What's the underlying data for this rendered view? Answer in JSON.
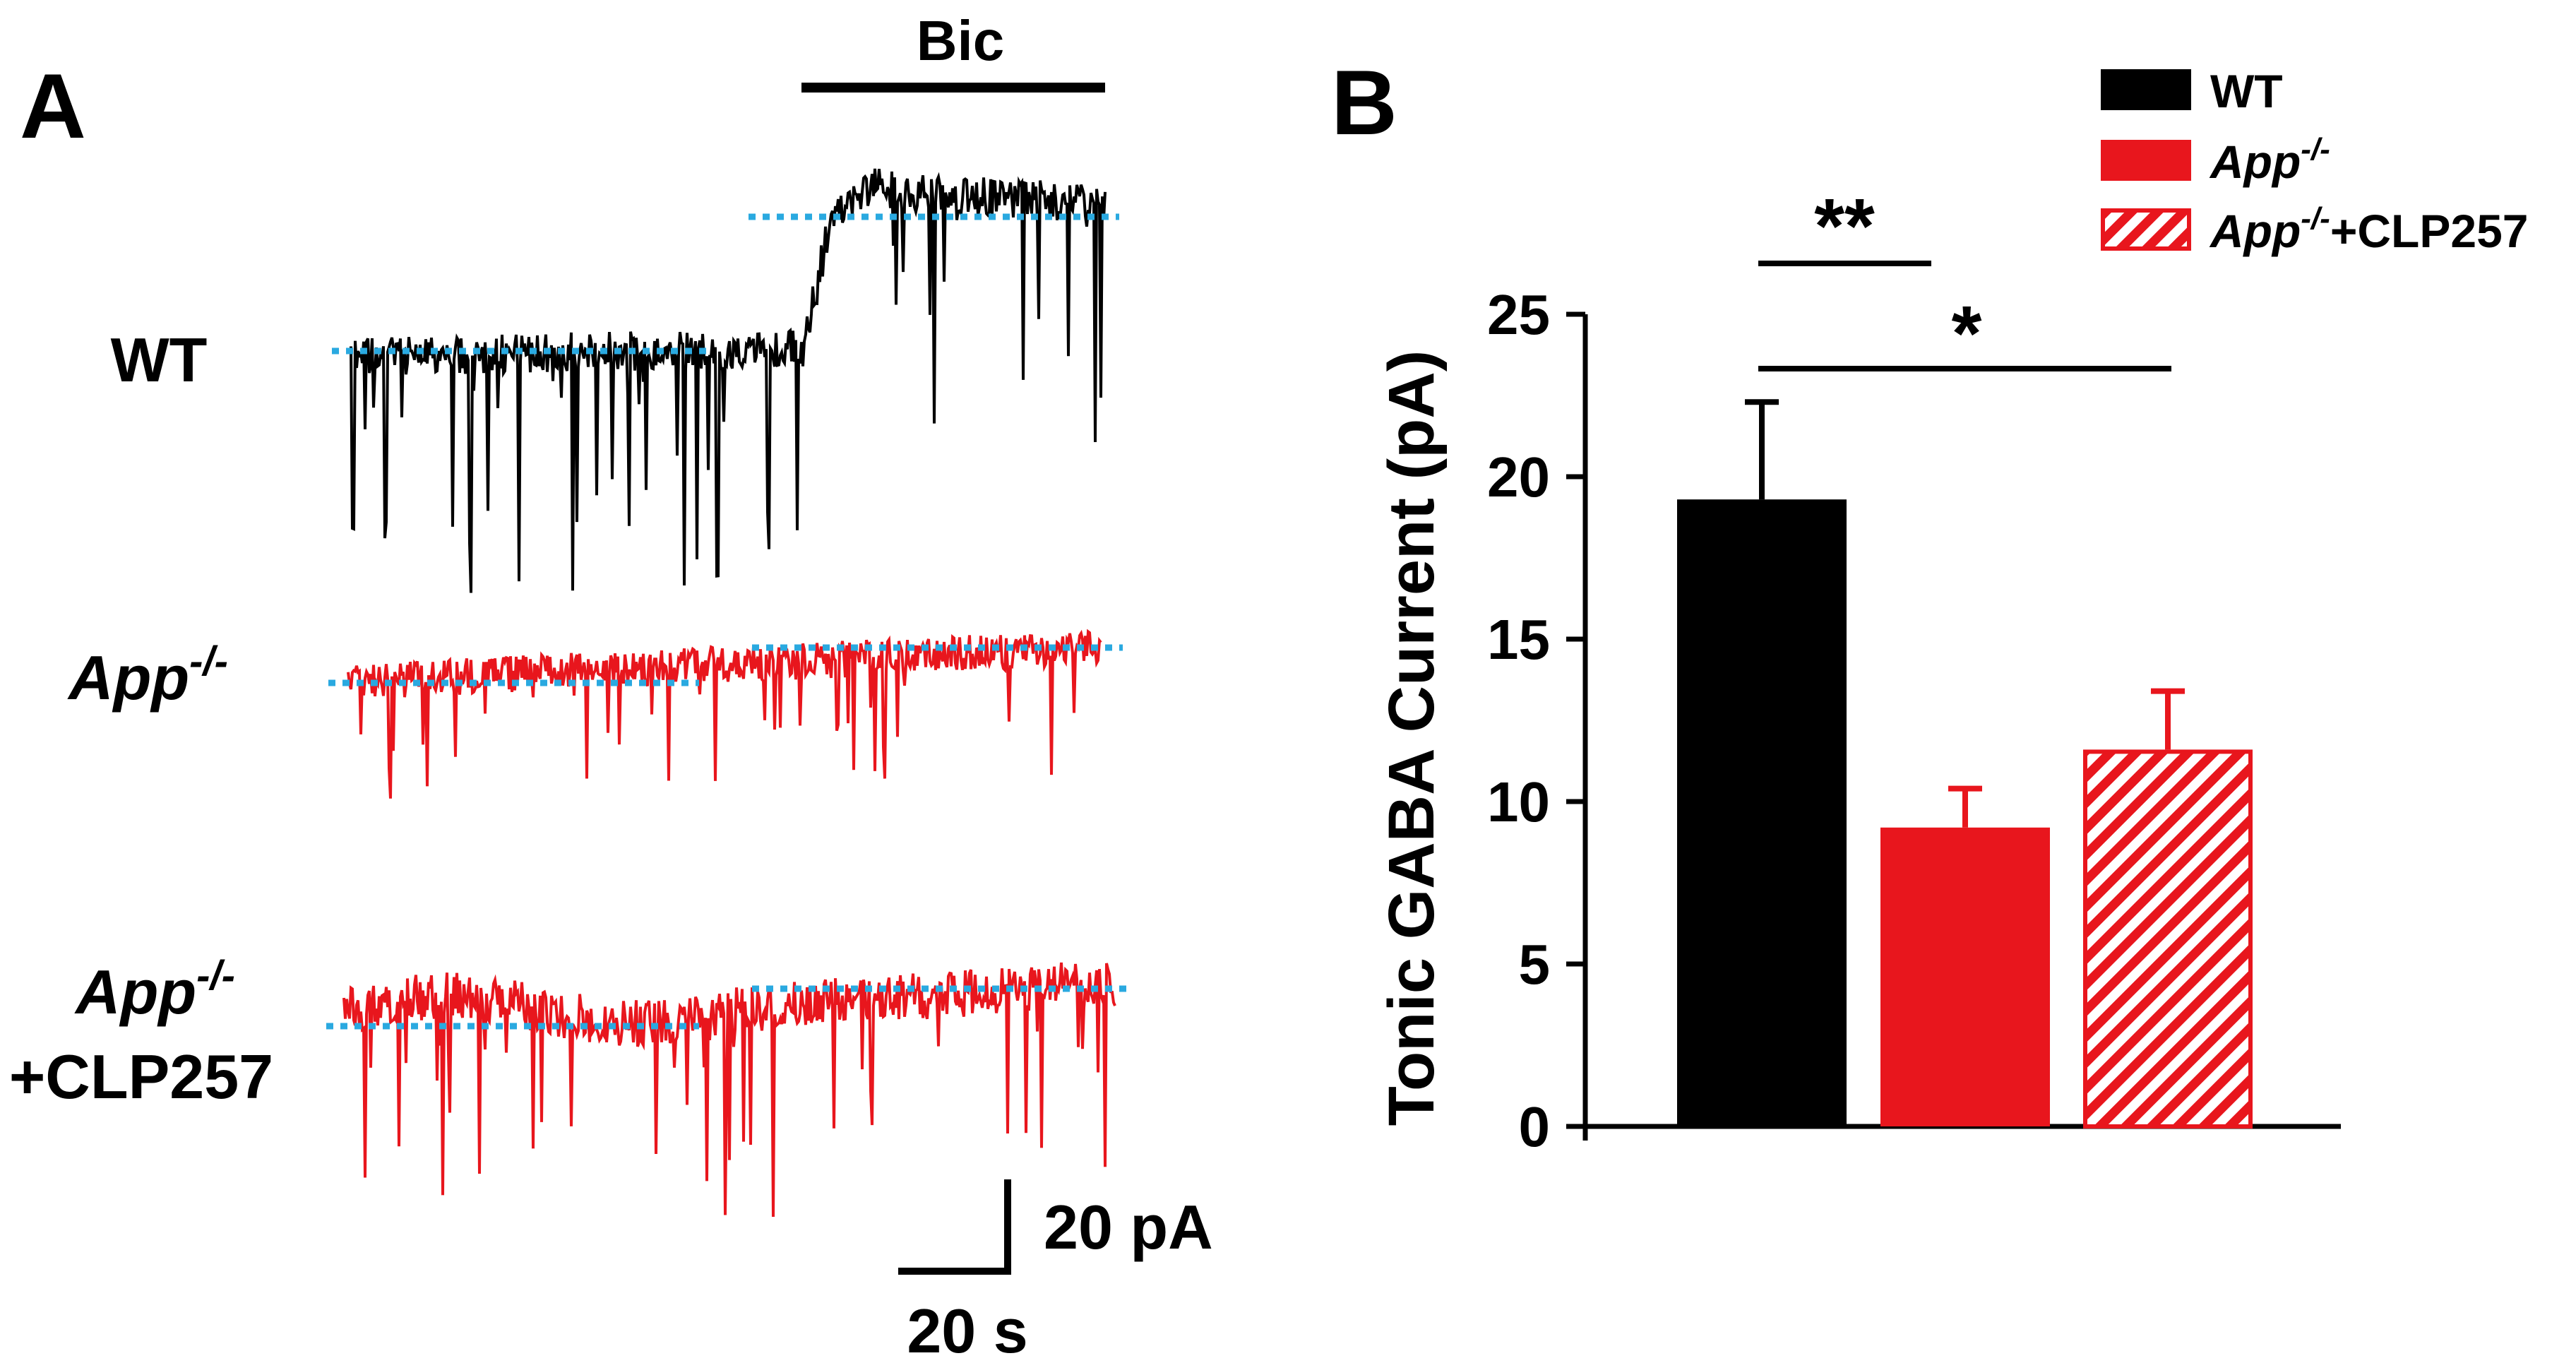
{
  "panel_a": {
    "label": "A",
    "drug_label": "Bic",
    "rows": [
      {
        "name": "WT",
        "name_main": "WT",
        "name_sup": "",
        "name_extra": "",
        "color": "#000000"
      },
      {
        "name": "App-/-",
        "name_main": "App",
        "name_sup": "-/-",
        "name_extra": "",
        "color": "#e8161d"
      },
      {
        "name": "App-/- +CLP257",
        "name_main": "App",
        "name_sup": "-/-",
        "name_extra": "+CLP257",
        "color": "#e8161d"
      }
    ],
    "baseline_color": "#2aa9e0",
    "scale_bar": {
      "current": "20 pA",
      "time": "20 s"
    }
  },
  "panel_b": {
    "label": "B",
    "significance": {
      "wt_vs_app": "**",
      "wt_vs_clp": "*"
    }
  },
  "chart_data": {
    "type": "bar",
    "categories": [
      "WT",
      "App-/-",
      "App-/-+CLP257"
    ],
    "values": [
      19.3,
      9.2,
      11.6
    ],
    "errors": [
      3.0,
      1.2,
      1.8
    ],
    "ylabel": "Tonic GABA Current (pA)",
    "ylim": [
      0,
      25
    ],
    "yticks": [
      0,
      5,
      10,
      15,
      20,
      25
    ],
    "legend": [
      {
        "main": "WT",
        "sup": "",
        "extra": "",
        "color": "#000000",
        "pattern": "solid"
      },
      {
        "main": "App",
        "sup": "-/-",
        "extra": "",
        "color": "#e8161d",
        "pattern": "solid"
      },
      {
        "main": "App",
        "sup": "-/-",
        "extra": "+CLP257",
        "color": "#e8161d",
        "pattern": "hatched"
      }
    ],
    "legend_position": "top-right"
  }
}
